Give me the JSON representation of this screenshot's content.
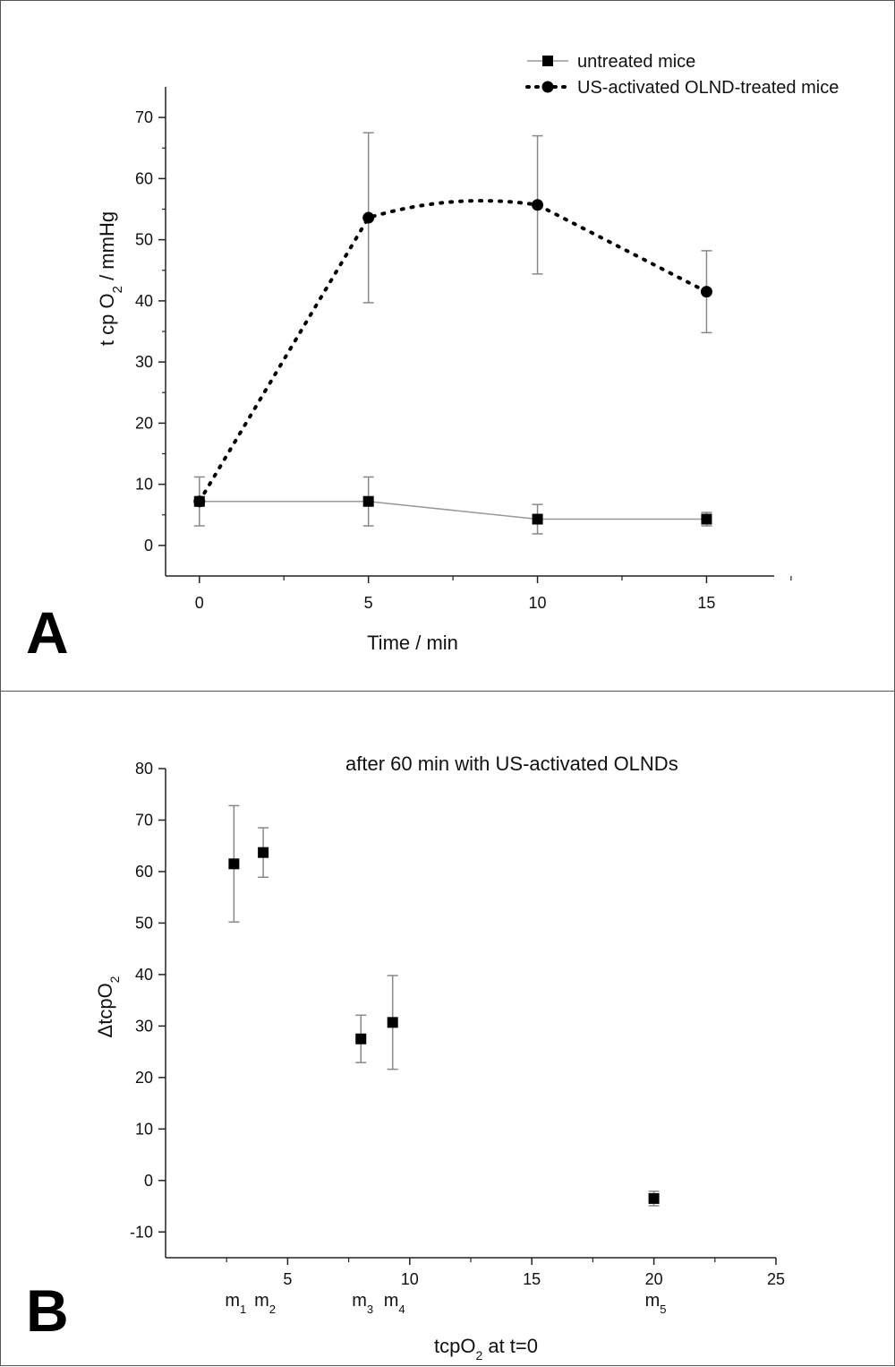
{
  "chart_data": [
    {
      "type": "line",
      "panel_label": "A",
      "xlabel": "Time / min",
      "ylabel_parts": {
        "pre": "t cp O",
        "sub": "2",
        "post": "  / mmHg"
      },
      "xlim": [
        -1,
        17
      ],
      "ylim": [
        -5,
        75
      ],
      "xticks": [
        0,
        5,
        10,
        15
      ],
      "yticks": [
        0,
        10,
        20,
        30,
        40,
        50,
        60,
        70
      ],
      "legend_position": "top-right",
      "series": [
        {
          "name": "untreated mice",
          "marker": "square",
          "line": "solid",
          "x": [
            0,
            5,
            10,
            15
          ],
          "y": [
            7.2,
            7.2,
            4.3,
            4.3
          ],
          "err": [
            4.0,
            4.0,
            2.4,
            1.1
          ]
        },
        {
          "name": "US-activated OLND-treated mice",
          "marker": "circle",
          "line": "dotted",
          "x": [
            0,
            5,
            10,
            15
          ],
          "y": [
            7.2,
            53.6,
            55.7,
            41.5
          ],
          "err": [
            0,
            13.9,
            11.3,
            6.7
          ]
        }
      ]
    },
    {
      "type": "scatter",
      "panel_label": "B",
      "title": "after 60 min with US-activated OLNDs",
      "xlabel_parts": {
        "pre": "tcpO",
        "sub": "2",
        "post": " at t=0"
      },
      "ylabel_parts": {
        "pre": "ΔtcpO",
        "sub": "2",
        "post": ""
      },
      "xlim": [
        0,
        25
      ],
      "ylim": [
        -15,
        80
      ],
      "xticks": [
        5,
        10,
        15,
        20,
        25
      ],
      "yticks": [
        -10,
        0,
        10,
        20,
        30,
        40,
        50,
        60,
        70,
        80
      ],
      "series": [
        {
          "marker": "square",
          "x": [
            2.8,
            4.0,
            8.0,
            9.3,
            20.0
          ],
          "y": [
            61.5,
            63.7,
            27.5,
            30.7,
            -3.5
          ],
          "err": [
            11.3,
            4.8,
            4.6,
            9.1,
            1.4
          ],
          "point_labels": [
            {
              "base": "m",
              "sub": "1"
            },
            {
              "base": "m",
              "sub": "2"
            },
            {
              "base": "m",
              "sub": "3"
            },
            {
              "base": "m",
              "sub": "4"
            },
            {
              "base": "m",
              "sub": "5"
            }
          ]
        }
      ]
    }
  ]
}
